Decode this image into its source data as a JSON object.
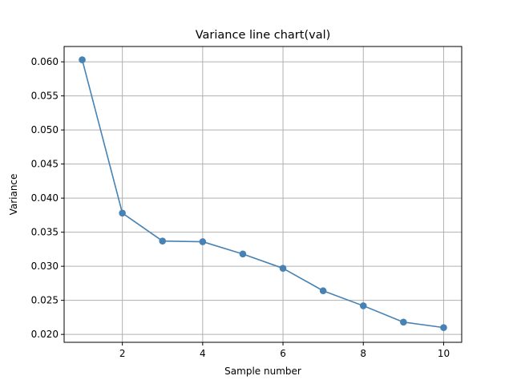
{
  "chart_data": {
    "type": "line",
    "title": "Variance line chart(val)",
    "xlabel": "Sample number",
    "ylabel": "Variance",
    "x": [
      1,
      2,
      3,
      4,
      5,
      6,
      7,
      8,
      9,
      10
    ],
    "series": [
      {
        "values": [
          0.0603,
          0.0378,
          0.0337,
          0.0336,
          0.0318,
          0.0297,
          0.0264,
          0.0242,
          0.0218,
          0.021
        ],
        "color": "#4682b4",
        "marker": "circle"
      }
    ],
    "xlim": [
      0.55,
      10.45
    ],
    "ylim": [
      0.01884,
      0.06225
    ],
    "xticks": [
      2,
      4,
      6,
      8,
      10
    ],
    "xtick_labels": [
      "2",
      "4",
      "6",
      "8",
      "10"
    ],
    "yticks": [
      0.02,
      0.025,
      0.03,
      0.035,
      0.04,
      0.045,
      0.05,
      0.055,
      0.06
    ],
    "ytick_labels": [
      "0.020",
      "0.025",
      "0.030",
      "0.035",
      "0.040",
      "0.045",
      "0.050",
      "0.055",
      "0.060"
    ],
    "grid": true,
    "grid_color": "#b0b0b0",
    "line_color": "#4682b4"
  }
}
